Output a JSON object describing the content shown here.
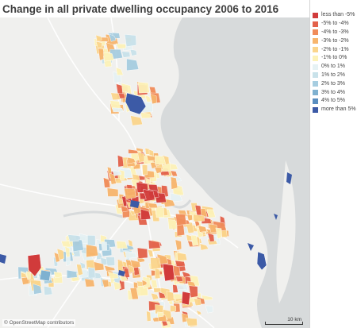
{
  "title": "Change in all private dwelling occupancy 2006 to 2016",
  "legend": [
    {
      "label": "less than -5%",
      "color": "#d13b3b"
    },
    {
      "label": "-5% to -4%",
      "color": "#e3614a"
    },
    {
      "label": "-4% to -3%",
      "color": "#f08c5a"
    },
    {
      "label": "-3% to -2%",
      "color": "#f7b56d"
    },
    {
      "label": "-2% to -1%",
      "color": "#fbd58c"
    },
    {
      "label": "-1% to 0%",
      "color": "#fdf2b8"
    },
    {
      "label": "0% to 1%",
      "color": "#e6f2f4"
    },
    {
      "label": "1% to 2%",
      "color": "#c9e2ea"
    },
    {
      "label": "2% to 3%",
      "color": "#a6cde0"
    },
    {
      "label": "3% to 4%",
      "color": "#7fb1d0"
    },
    {
      "label": "4% to 5%",
      "color": "#5a8ec0"
    },
    {
      "label": "more than 5%",
      "color": "#3c5aa6"
    }
  ],
  "map": {
    "attribution": "© OpenStreetMap contributors",
    "scale_label": "10 km",
    "colors": {
      "land": "#f0f0ee",
      "water": "#d7dadb",
      "roads": "#ffffff"
    }
  }
}
